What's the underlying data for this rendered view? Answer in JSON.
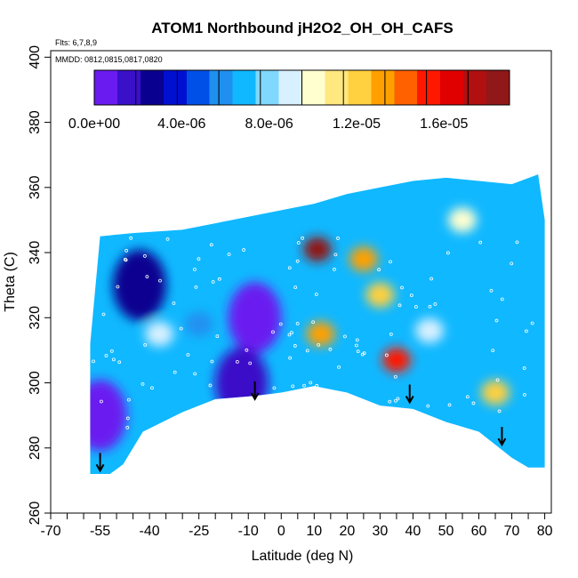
{
  "chart_data": {
    "type": "heatmap",
    "title": "ATOM1 Northbound jH2O2_OH_OH_CAFS",
    "flights_label": "Flts: 6,7,8,9",
    "dates_label": "MMDD: 0812,0815,0817,0820",
    "xlabel": "Latitude (deg N)",
    "ylabel": "Theta (C)",
    "xlim": [
      -70,
      82
    ],
    "ylim": [
      260,
      402
    ],
    "x_ticks": [
      -70,
      -55,
      -40,
      -25,
      -10,
      0,
      10,
      20,
      30,
      40,
      50,
      60,
      70,
      80
    ],
    "x_tick_labels": [
      "-70",
      "-55",
      "-40",
      "-25",
      "-10",
      "0",
      "10",
      "20",
      "30",
      "40",
      "50",
      "60",
      "70",
      "80"
    ],
    "y_ticks": [
      260,
      280,
      300,
      320,
      340,
      360,
      380,
      400
    ],
    "y_tick_labels": [
      "260",
      "280",
      "300",
      "320",
      "340",
      "360",
      "380",
      "400"
    ],
    "colorbar": {
      "min": 0,
      "max": 1.9e-05,
      "tick_values": [
        0,
        4e-06,
        8e-06,
        1.2e-05,
        1.6e-05
      ],
      "tick_labels": [
        "0.0e+00",
        "4.0e-06",
        "8.0e-06",
        "1.2e-05",
        "1.6e-05"
      ],
      "colors": [
        "#6a1bf0",
        "#3a10c8",
        "#0a0090",
        "#0010d0",
        "#0050e8",
        "#2090f0",
        "#10b8ff",
        "#80d8ff",
        "#d8f0ff",
        "#ffffd0",
        "#ffe880",
        "#ffd040",
        "#ffa000",
        "#ff6000",
        "#ff1800",
        "#e00000",
        "#b01010",
        "#901818"
      ]
    },
    "data_extent": {
      "lat": [
        -58,
        80
      ],
      "theta_bottom": [
        [
          -58,
          272
        ],
        [
          -52,
          272
        ],
        [
          -48,
          275
        ],
        [
          -42,
          285
        ],
        [
          -30,
          291
        ],
        [
          -20,
          295
        ],
        [
          -8,
          296
        ],
        [
          0,
          297
        ],
        [
          10,
          299
        ],
        [
          20,
          297
        ],
        [
          30,
          293
        ],
        [
          40,
          292
        ],
        [
          50,
          288
        ],
        [
          60,
          285
        ],
        [
          70,
          277
        ],
        [
          75,
          274
        ],
        [
          80,
          274
        ]
      ],
      "theta_top": [
        [
          -58,
          312
        ],
        [
          -55,
          345
        ],
        [
          -45,
          346
        ],
        [
          -30,
          347
        ],
        [
          -20,
          349
        ],
        [
          -10,
          351
        ],
        [
          0,
          353
        ],
        [
          10,
          355
        ],
        [
          20,
          358
        ],
        [
          30,
          360
        ],
        [
          40,
          362
        ],
        [
          50,
          363
        ],
        [
          60,
          362
        ],
        [
          70,
          361
        ],
        [
          78,
          364
        ],
        [
          80,
          350
        ]
      ]
    },
    "hotspots": [
      {
        "lat": 11,
        "theta": 341,
        "value": 1.85e-05
      },
      {
        "lat": 25,
        "theta": 338,
        "value": 1.3e-05
      },
      {
        "lat": 12,
        "theta": 315,
        "value": 1.3e-05
      },
      {
        "lat": 35,
        "theta": 307,
        "value": 1.5e-05
      },
      {
        "lat": 30,
        "theta": 327,
        "value": 1.2e-05
      },
      {
        "lat": 65,
        "theta": 297,
        "value": 1.25e-05
      },
      {
        "lat": 55,
        "theta": 350,
        "value": 1.05e-05
      },
      {
        "lat": -37,
        "theta": 315,
        "value": 9e-06
      },
      {
        "lat": -25,
        "theta": 318,
        "value": 6e-06
      },
      {
        "lat": 45,
        "theta": 316,
        "value": 9e-06
      }
    ],
    "low_regions": [
      {
        "lat": -55,
        "theta": 290,
        "value": 0
      },
      {
        "lat": -8,
        "theta": 320,
        "value": 1e-06
      },
      {
        "lat": -43,
        "theta": 330,
        "value": 3e-06
      },
      {
        "lat": -12,
        "theta": 300,
        "value": 2e-06
      }
    ],
    "arrows": [
      {
        "lat": -55,
        "theta": 273
      },
      {
        "lat": -8,
        "theta": 295
      },
      {
        "lat": 39,
        "theta": 294
      },
      {
        "lat": 67,
        "theta": 281
      }
    ]
  }
}
